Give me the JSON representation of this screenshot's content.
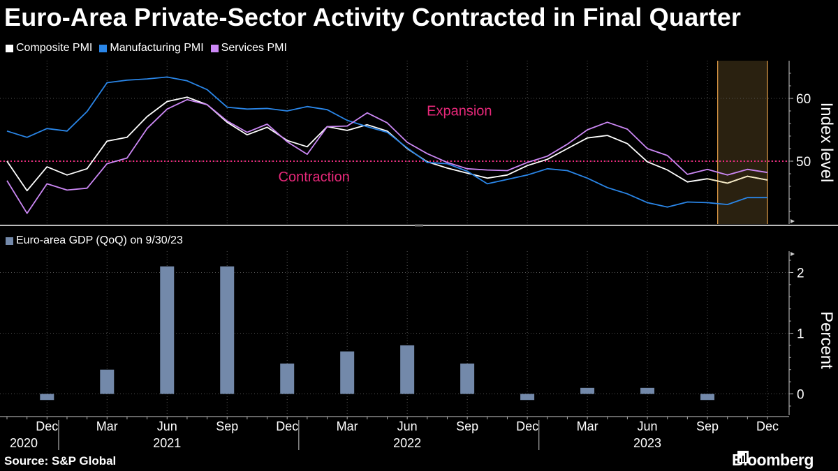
{
  "title": "Euro-Area Private-Sector Activity Contracted in Final Quarter",
  "source": "Source: S&P Global",
  "brand": "Bloomberg",
  "colors": {
    "composite": "#ffffff",
    "manufacturing": "#2a86e8",
    "services": "#cc88f5",
    "threshold": "#e8287a",
    "bars": "#7389aa",
    "highlight_fill": "#2a2110",
    "highlight_edge": "#e8a24a"
  },
  "chart_data": [
    {
      "type": "line",
      "legend_position": "top-left",
      "grid": true,
      "right_axis_label": "Index level",
      "ylim": [
        40,
        66
      ],
      "yticks": [
        60,
        50
      ],
      "threshold": 50,
      "annotations": {
        "above": "Expansion",
        "below": "Contraction"
      },
      "x": [
        "2020-10",
        "2020-11",
        "2020-12",
        "2021-01",
        "2021-02",
        "2021-03",
        "2021-04",
        "2021-05",
        "2021-06",
        "2021-07",
        "2021-08",
        "2021-09",
        "2021-10",
        "2021-11",
        "2021-12",
        "2022-01",
        "2022-02",
        "2022-03",
        "2022-04",
        "2022-05",
        "2022-06",
        "2022-07",
        "2022-08",
        "2022-09",
        "2022-10",
        "2022-11",
        "2022-12",
        "2023-01",
        "2023-02",
        "2023-03",
        "2023-04",
        "2023-05",
        "2023-06",
        "2023-07",
        "2023-08",
        "2023-09",
        "2023-10",
        "2023-11",
        "2023-12"
      ],
      "highlight_range": [
        "2023-10",
        "2023-12"
      ],
      "series": [
        {
          "name": "Composite PMI",
          "key": "composite",
          "values": [
            50.0,
            45.3,
            49.1,
            47.8,
            48.8,
            53.2,
            53.8,
            57.1,
            59.5,
            60.2,
            59.0,
            56.2,
            54.2,
            55.4,
            53.3,
            52.3,
            55.5,
            54.9,
            55.8,
            54.8,
            52.0,
            49.9,
            48.9,
            48.1,
            47.3,
            47.8,
            49.3,
            50.3,
            52.0,
            53.7,
            54.1,
            52.8,
            49.9,
            48.6,
            46.7,
            47.2,
            46.5,
            47.6,
            47.0
          ]
        },
        {
          "name": "Manufacturing PMI",
          "key": "manufacturing",
          "values": [
            54.8,
            53.8,
            55.2,
            54.8,
            57.9,
            62.5,
            62.9,
            63.1,
            63.4,
            62.8,
            61.4,
            58.6,
            58.3,
            58.4,
            58.0,
            58.7,
            58.2,
            56.5,
            55.5,
            54.6,
            52.1,
            49.8,
            49.6,
            48.4,
            46.4,
            47.1,
            47.8,
            48.8,
            48.5,
            47.3,
            45.8,
            44.8,
            43.4,
            42.7,
            43.5,
            43.4,
            43.1,
            44.2,
            44.2
          ]
        },
        {
          "name": "Services PMI",
          "key": "services",
          "values": [
            46.9,
            41.7,
            46.4,
            45.4,
            45.7,
            49.6,
            50.5,
            55.2,
            58.3,
            59.8,
            59.0,
            56.4,
            54.6,
            55.9,
            53.1,
            51.1,
            55.5,
            55.6,
            57.7,
            56.1,
            53.0,
            51.2,
            49.8,
            48.8,
            48.6,
            48.5,
            49.8,
            50.8,
            52.7,
            55.0,
            56.2,
            55.1,
            52.0,
            50.9,
            47.9,
            48.7,
            47.8,
            48.7,
            48.2
          ]
        }
      ]
    },
    {
      "type": "bar",
      "legend_position": "top-left",
      "grid": true,
      "right_axis_label": "Percent",
      "ylim": [
        -0.35,
        2.35
      ],
      "yticks": [
        2,
        1,
        0
      ],
      "series": [
        {
          "name": "Euro-area GDP (QoQ) on 9/30/23",
          "x": [
            "2020-12",
            "2021-03",
            "2021-06",
            "2021-09",
            "2021-12",
            "2022-03",
            "2022-06",
            "2022-09",
            "2022-12",
            "2023-03",
            "2023-06",
            "2023-09"
          ],
          "values": [
            -0.1,
            0.4,
            2.1,
            2.1,
            0.5,
            0.7,
            0.8,
            0.5,
            -0.1,
            0.1,
            0.1,
            -0.1
          ]
        }
      ]
    }
  ],
  "x_axis": {
    "month_ticks": [
      {
        "date": "2020-12",
        "label": "Dec"
      },
      {
        "date": "2021-03",
        "label": "Mar"
      },
      {
        "date": "2021-06",
        "label": "Jun"
      },
      {
        "date": "2021-09",
        "label": "Sep"
      },
      {
        "date": "2021-12",
        "label": "Dec"
      },
      {
        "date": "2022-03",
        "label": "Mar"
      },
      {
        "date": "2022-06",
        "label": "Jun"
      },
      {
        "date": "2022-09",
        "label": "Sep"
      },
      {
        "date": "2022-12",
        "label": "Dec"
      },
      {
        "date": "2023-03",
        "label": "Mar"
      },
      {
        "date": "2023-06",
        "label": "Jun"
      },
      {
        "date": "2023-09",
        "label": "Sep"
      },
      {
        "date": "2023-12",
        "label": "Dec"
      }
    ],
    "year_labels": [
      {
        "date": "2020-10",
        "label": "2020"
      },
      {
        "date": "2021-06",
        "label": "2021"
      },
      {
        "date": "2022-06",
        "label": "2022"
      },
      {
        "date": "2023-06",
        "label": "2023"
      }
    ]
  }
}
